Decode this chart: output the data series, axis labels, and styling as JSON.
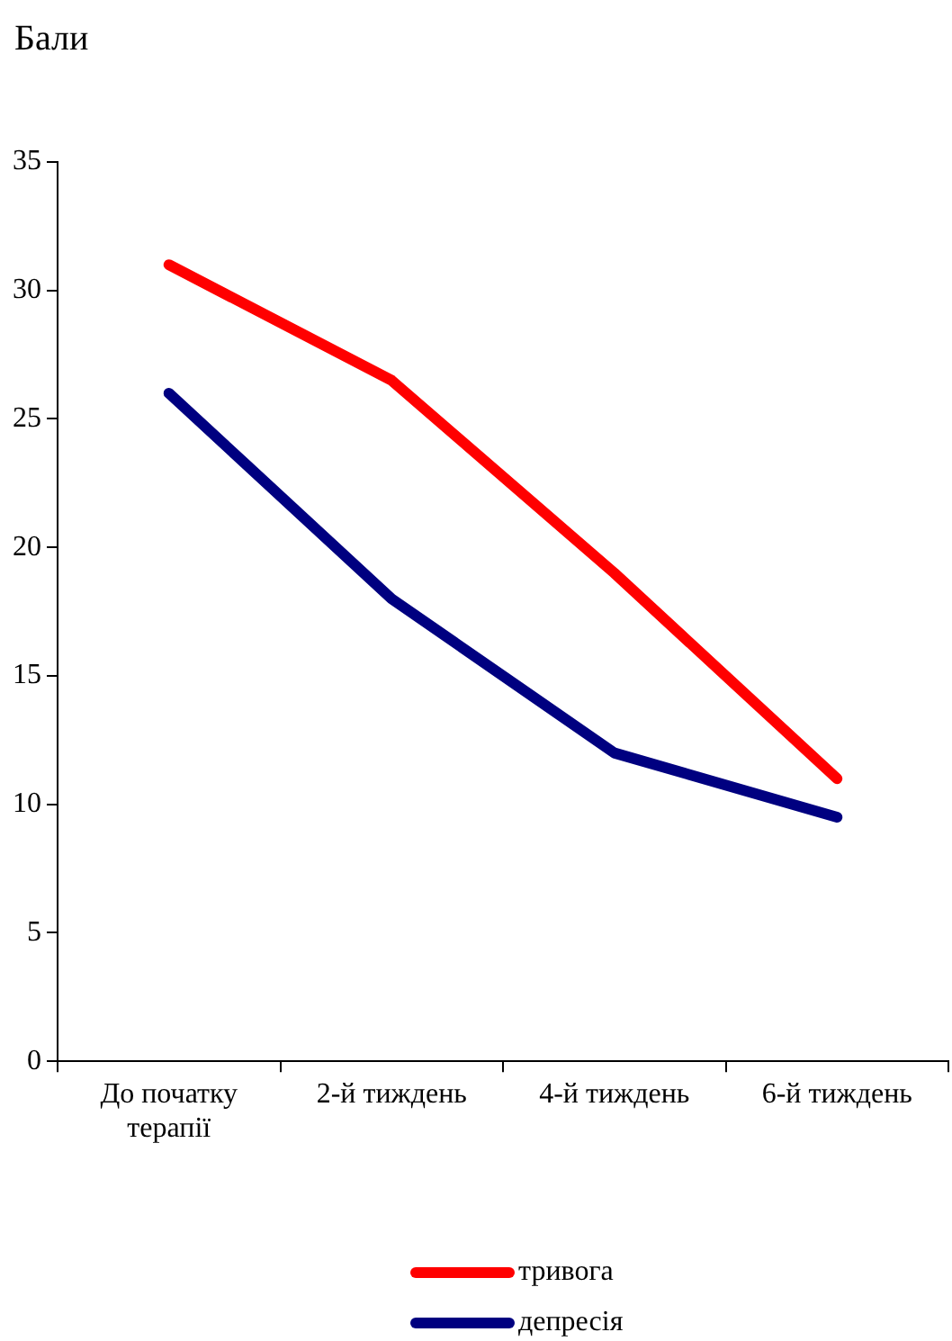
{
  "chart_data": {
    "type": "line",
    "ylabel": "Бали",
    "categories": [
      "До початку терапії",
      "2-й тиждень",
      "4-й тиждень",
      "6-й тиждень"
    ],
    "series": [
      {
        "name": "тривога",
        "color": "#ff0000",
        "values": [
          31,
          26.5,
          19,
          11
        ]
      },
      {
        "name": "депресія",
        "color": "#000080",
        "values": [
          26,
          18,
          12,
          9.5
        ]
      }
    ],
    "ylim": [
      0,
      35
    ],
    "yticks": [
      0,
      5,
      10,
      15,
      20,
      25,
      30,
      35
    ],
    "grid": false,
    "legend": "bottom",
    "marker": "none",
    "line_style": "solid"
  }
}
